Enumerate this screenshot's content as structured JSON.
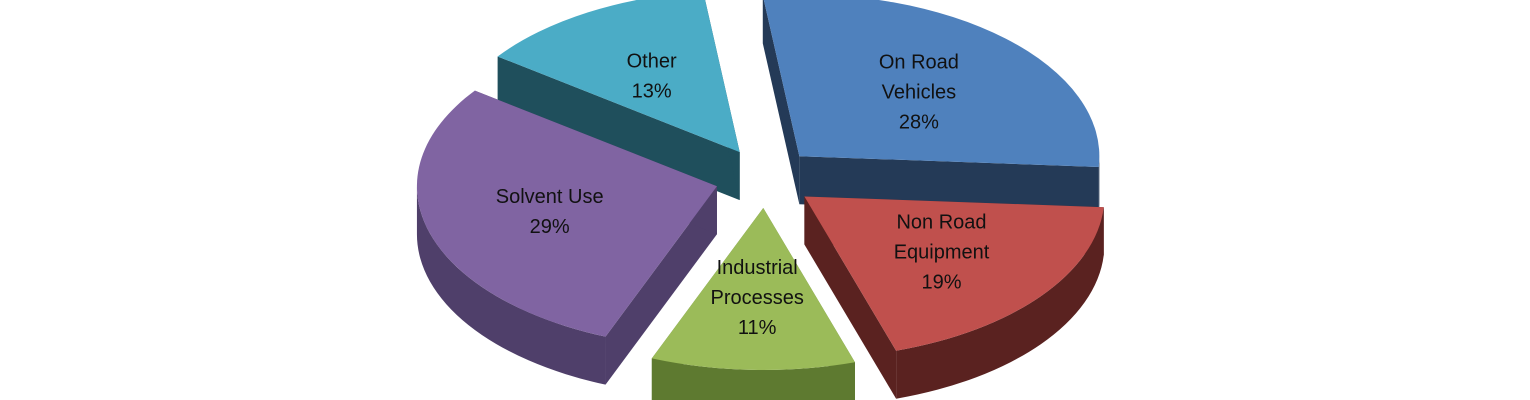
{
  "chart_data": {
    "type": "pie",
    "title": "",
    "style": "3d-exploded",
    "legend": "none",
    "slices": [
      {
        "label_lines": [
          "On Road",
          "Vehicles"
        ],
        "value": 28,
        "value_label": "28%",
        "color": "#4f81bd",
        "side_color": "#243a57"
      },
      {
        "label_lines": [
          "Non Road",
          "Equipment"
        ],
        "value": 19,
        "value_label": "19%",
        "color": "#c0504d",
        "side_color": "#5a2220"
      },
      {
        "label_lines": [
          "Industrial",
          "Processes"
        ],
        "value": 11,
        "value_label": "11%",
        "color": "#9bbb59",
        "side_color": "#5e7a30"
      },
      {
        "label_lines": [
          "Solvent Use"
        ],
        "value": 29,
        "value_label": "29%",
        "color": "#8064a2",
        "side_color": "#4f3f6a"
      },
      {
        "label_lines": [
          "Other"
        ],
        "value": 13,
        "value_label": "13%",
        "color": "#4bacc6",
        "side_color": "#1f4f5c"
      }
    ]
  }
}
